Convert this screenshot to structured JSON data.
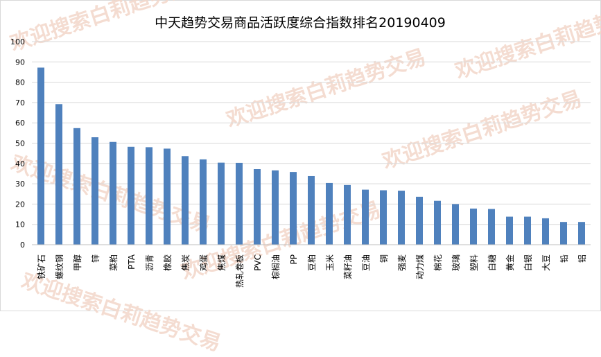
{
  "watermark": "欢迎搜索白莉趋势交易",
  "colors": {
    "bar": "#4f81bd",
    "grid": "#d9d9d9",
    "axis": "#bfbfbf",
    "text": "#000000",
    "watermark": "#f3d7c9"
  },
  "chart_data": {
    "type": "bar",
    "title": "中天趋势交易商品活跃度综合指数排名20190409",
    "xlabel": "",
    "ylabel": "",
    "ylim": [
      0,
      100
    ],
    "yticks": [
      0,
      10,
      20,
      30,
      40,
      50,
      60,
      70,
      80,
      90,
      100
    ],
    "grid": true,
    "legend": "none",
    "categories": [
      "铁矿石",
      "螺纹钢",
      "甲醇",
      "锌",
      "菜粕",
      "PTA",
      "沥青",
      "橡胶",
      "焦炭",
      "鸡蛋",
      "焦煤",
      "热轧卷板",
      "PVC",
      "棕榈油",
      "PP",
      "豆粕",
      "玉米",
      "菜籽油",
      "豆油",
      "铜",
      "强麦",
      "动力煤",
      "棉花",
      "玻璃",
      "塑料",
      "白糖",
      "黄金",
      "白银",
      "大豆",
      "铅",
      "铝"
    ],
    "values": [
      87.2,
      69.2,
      57.4,
      52.9,
      50.6,
      48.2,
      48.0,
      47.3,
      43.6,
      42.0,
      40.4,
      40.3,
      37.2,
      36.6,
      35.8,
      33.8,
      30.4,
      29.4,
      27.1,
      26.8,
      26.6,
      23.6,
      21.6,
      20.0,
      17.8,
      17.6,
      13.8,
      13.8,
      13.0,
      11.2,
      11.2
    ]
  }
}
